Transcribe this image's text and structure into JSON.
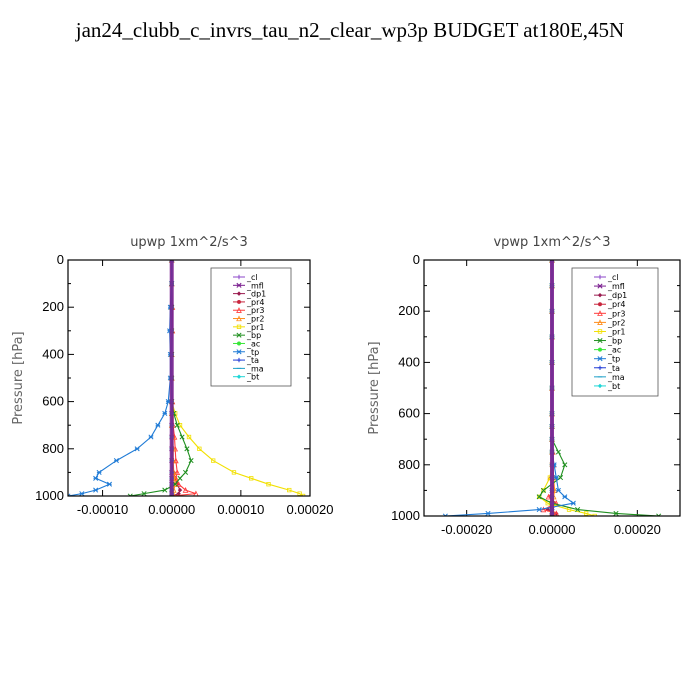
{
  "title": "jan24_clubb_c_invrs_tau_n2_clear_wp3p  BUDGET at180E,45N",
  "colors": {
    "_cl": "#8b45c8",
    "_mfl": "#7a1f8f",
    "_dp1": "#9a1b4f",
    "_pr4": "#c8243c",
    "_pr3": "#ff3b3b",
    "_pr2": "#ff8c1a",
    "_pr1": "#f2e000",
    "_bp": "#1f8f1f",
    "_ac": "#38e638",
    "_tp": "#1f7bd6",
    "_ta": "#1f3ad6",
    "_ma": "#1fa0c8",
    "_bt": "#1fd6d6"
  },
  "chart_data": [
    {
      "type": "line",
      "title": "upwp  1xm^2/s^3",
      "ylabel": "Pressure [hPa]",
      "xlim": [
        -0.00015,
        0.0002
      ],
      "ylim": [
        1000,
        0
      ],
      "xticks": [
        -0.0001,
        0.0,
        0.0001,
        0.0002
      ],
      "xtick_labels": [
        "-0.00010",
        "0.00000",
        "0.00010",
        "0.00020"
      ],
      "yticks": [
        0,
        200,
        400,
        600,
        800,
        1000
      ],
      "ytick_labels": [
        "0",
        "200",
        "400",
        "600",
        "800",
        "1000"
      ],
      "legend_position": "top-right",
      "y": [
        0,
        100,
        200,
        300,
        400,
        500,
        600,
        650,
        700,
        750,
        800,
        850,
        900,
        925,
        950,
        975,
        990,
        1000
      ],
      "series": [
        {
          "name": "_cl",
          "values": [
            0,
            0,
            0,
            0,
            0,
            0,
            0,
            0,
            0,
            0,
            0,
            0,
            0,
            0,
            0,
            0,
            0,
            0
          ]
        },
        {
          "name": "_mfl",
          "values": [
            0,
            0,
            0,
            0,
            0,
            0,
            0,
            0,
            0,
            0,
            0,
            0,
            0,
            0,
            0,
            0,
            0,
            0
          ]
        },
        {
          "name": "_dp1",
          "values": [
            0,
            0,
            0,
            0,
            0,
            0,
            0,
            0,
            0,
            0,
            0,
            0,
            3e-06,
            5e-06,
            8e-06,
            1.2e-05,
            1e-05,
            0
          ]
        },
        {
          "name": "_pr4",
          "values": [
            0,
            0,
            0,
            0,
            0,
            0,
            0,
            0,
            0,
            0,
            0,
            0,
            0,
            0,
            0,
            0,
            0,
            0
          ]
        },
        {
          "name": "_pr3",
          "values": [
            0,
            0,
            1e-06,
            1e-06,
            0,
            0,
            1e-06,
            2e-06,
            2e-06,
            4e-06,
            5e-06,
            6e-06,
            8e-06,
            6e-06,
            1e-05,
            2e-05,
            3.5e-05,
            0
          ]
        },
        {
          "name": "_pr2",
          "values": [
            0,
            0,
            0,
            0,
            0,
            0,
            0,
            0,
            0,
            1e-06,
            2e-06,
            2e-06,
            3e-06,
            4e-06,
            5e-06,
            3e-06,
            2e-06,
            0
          ]
        },
        {
          "name": "_pr1",
          "values": [
            0,
            0,
            0,
            0,
            0,
            0,
            0,
            5e-06,
            1.2e-05,
            2.5e-05,
            4e-05,
            6e-05,
            9e-05,
            0.000115,
            0.00014,
            0.00017,
            0.000185,
            0.00019
          ]
        },
        {
          "name": "_bp",
          "values": [
            0,
            0,
            0,
            0,
            0,
            0,
            0,
            3e-06,
            8e-06,
            1.5e-05,
            2.2e-05,
            2.8e-05,
            2e-05,
            1.2e-05,
            5e-06,
            -1e-05,
            -4e-05,
            -6e-05
          ]
        },
        {
          "name": "_ac",
          "values": [
            0,
            0,
            0,
            0,
            0,
            0,
            0,
            0,
            0,
            0,
            0,
            0,
            0,
            0,
            0,
            0,
            0,
            0
          ]
        },
        {
          "name": "_tp",
          "values": [
            0,
            0,
            -2e-06,
            -3e-06,
            -2e-06,
            -2e-06,
            -5e-06,
            -1e-05,
            -2e-05,
            -3e-05,
            -5e-05,
            -8e-05,
            -0.000105,
            -0.00011,
            -9e-05,
            -0.00011,
            -0.00013,
            -0.00015
          ]
        },
        {
          "name": "_ta",
          "values": [
            0,
            0,
            0,
            0,
            0,
            0,
            0,
            0,
            0,
            0,
            0,
            0,
            0,
            0,
            0,
            0,
            0,
            0
          ]
        },
        {
          "name": "_ma",
          "values": [
            0,
            0,
            0,
            0,
            0,
            0,
            0,
            0,
            0,
            0,
            0,
            0,
            0,
            0,
            0,
            0,
            0,
            0
          ]
        },
        {
          "name": "_bt",
          "values": [
            0,
            0,
            0,
            0,
            0,
            0,
            0,
            0,
            0,
            0,
            0,
            0,
            0,
            0,
            0,
            0,
            0,
            0
          ]
        }
      ]
    },
    {
      "type": "line",
      "title": "vpwp  1xm^2/s^3",
      "ylabel": "Pressure [hPa]",
      "xlim": [
        -0.0003,
        0.0003
      ],
      "ylim": [
        1000,
        0
      ],
      "xticks": [
        -0.0002,
        0.0,
        0.0002
      ],
      "xtick_labels": [
        "-0.00020",
        "0.00000",
        "0.00020"
      ],
      "yticks": [
        0,
        200,
        400,
        600,
        800,
        1000
      ],
      "ytick_labels": [
        "0",
        "200",
        "400",
        "600",
        "800",
        "1000"
      ],
      "legend_position": "top-right",
      "y": [
        0,
        100,
        200,
        300,
        400,
        500,
        600,
        650,
        700,
        750,
        800,
        850,
        900,
        925,
        950,
        975,
        990,
        1000
      ],
      "series": [
        {
          "name": "_cl",
          "values": [
            0,
            0,
            0,
            0,
            0,
            0,
            0,
            0,
            0,
            0,
            0,
            0,
            0,
            0,
            0,
            0,
            0,
            0
          ]
        },
        {
          "name": "_mfl",
          "values": [
            0,
            0,
            0,
            0,
            0,
            0,
            0,
            0,
            0,
            0,
            0,
            0,
            0,
            0,
            0,
            0,
            0,
            0
          ]
        },
        {
          "name": "_dp1",
          "values": [
            0,
            0,
            0,
            0,
            0,
            0,
            0,
            0,
            0,
            0,
            0,
            0,
            0,
            0,
            5e-06,
            -1e-05,
            1e-05,
            0
          ]
        },
        {
          "name": "_pr4",
          "values": [
            0,
            0,
            0,
            0,
            0,
            0,
            0,
            0,
            0,
            0,
            0,
            0,
            0,
            0,
            0,
            0,
            0,
            0
          ]
        },
        {
          "name": "_pr3",
          "values": [
            0,
            0,
            0,
            0,
            0,
            0,
            0,
            0,
            0,
            2e-06,
            4e-06,
            -4e-06,
            6e-06,
            -8e-06,
            1e-05,
            -2e-05,
            1e-05,
            0
          ]
        },
        {
          "name": "_pr2",
          "values": [
            0,
            0,
            0,
            0,
            0,
            0,
            0,
            0,
            0,
            0,
            2e-06,
            4e-06,
            6e-06,
            4e-06,
            2e-06,
            0,
            0,
            0
          ]
        },
        {
          "name": "_pr1",
          "values": [
            0,
            0,
            0,
            0,
            0,
            0,
            0,
            0,
            0,
            0,
            0,
            -5e-06,
            -2e-05,
            -3e-05,
            -1e-05,
            4e-05,
            8e-05,
            0.0001
          ]
        },
        {
          "name": "_bp",
          "values": [
            0,
            0,
            0,
            0,
            0,
            0,
            0,
            0,
            0,
            1.5e-05,
            3e-05,
            2e-05,
            -2e-05,
            -3e-05,
            0,
            6e-05,
            0.00015,
            0.00025
          ]
        },
        {
          "name": "_ac",
          "values": [
            0,
            0,
            0,
            0,
            0,
            0,
            0,
            0,
            0,
            0,
            0,
            0,
            0,
            0,
            0,
            0,
            0,
            0
          ]
        },
        {
          "name": "_tp",
          "values": [
            0,
            0,
            0,
            0,
            0,
            0,
            0,
            0,
            0,
            0,
            5e-06,
            1e-05,
            1.5e-05,
            3e-05,
            5e-05,
            -3e-05,
            -0.00015,
            -0.00025
          ]
        },
        {
          "name": "_ta",
          "values": [
            0,
            0,
            0,
            0,
            0,
            0,
            0,
            0,
            0,
            0,
            0,
            0,
            0,
            0,
            0,
            0,
            0,
            0
          ]
        },
        {
          "name": "_ma",
          "values": [
            0,
            0,
            0,
            0,
            0,
            0,
            0,
            0,
            0,
            0,
            0,
            0,
            0,
            0,
            0,
            0,
            0,
            0
          ]
        },
        {
          "name": "_bt",
          "values": [
            0,
            0,
            0,
            0,
            0,
            0,
            0,
            0,
            0,
            0,
            0,
            0,
            0,
            0,
            0,
            0,
            0,
            0
          ]
        }
      ]
    }
  ]
}
